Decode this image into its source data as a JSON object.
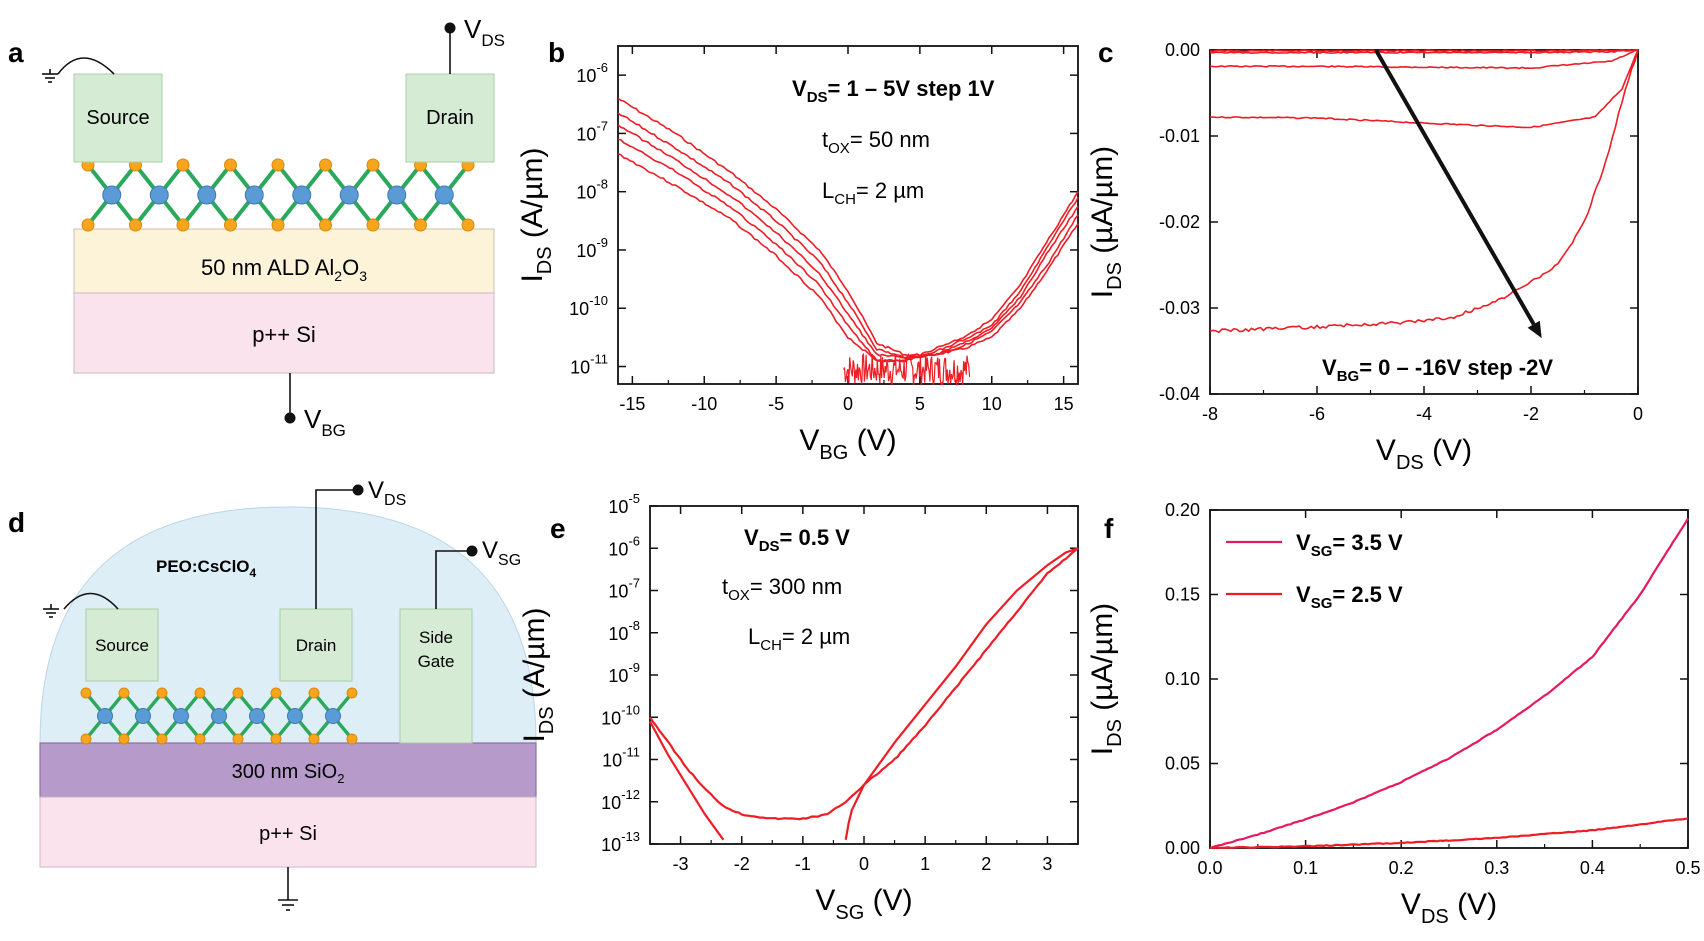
{
  "panels": {
    "a": {
      "letter": "a",
      "source": "Source",
      "drain": "Drain",
      "vds_main": "V",
      "vds_sub": "DS",
      "vbg_main": "V",
      "vbg_sub": "BG",
      "oxide_pre": "50 nm ALD Al",
      "oxide_sub1": "2",
      "oxide_mid": "O",
      "oxide_sub2": "3",
      "substrate": "p++ Si",
      "colors": {
        "contact": "#d5ebd3",
        "oxide": "#fdf3d9",
        "substrate": "#fbe3ee",
        "bond": "#2aa85c",
        "mo": "#5b9bd5",
        "s": "#f7a51c"
      }
    },
    "d": {
      "letter": "d",
      "source": "Source",
      "drain": "Drain",
      "gate_line1": "Side",
      "gate_line2": "Gate",
      "electrolyte_pre": "PEO:CsClO",
      "electrolyte_sub": "4",
      "vds_main": "V",
      "vds_sub": "DS",
      "vsg_main": "V",
      "vsg_sub": "SG",
      "oxide_pre": "300 nm SiO",
      "oxide_sub": "2",
      "substrate": "p++ Si",
      "colors": {
        "dome": "#ddeef7",
        "oxide": "#b69ac9",
        "substrate": "#fbe3ee"
      }
    },
    "b": {
      "letter": "b",
      "ann1_pre": "V",
      "ann1_sub": "DS",
      "ann1_post": "= 1 – 5V step 1V",
      "ann2_pre": "t",
      "ann2_sub": "OX",
      "ann2_post": "= 50 nm",
      "ann3_pre": "L",
      "ann3_sub": "CH",
      "ann3_post": "= 2 µm"
    },
    "c": {
      "letter": "c",
      "ann_pre": "V",
      "ann_sub": "BG",
      "ann_post": "= 0 –  -16V step -2V"
    },
    "e": {
      "letter": "e",
      "ann1_pre": "V",
      "ann1_sub": "DS",
      "ann1_post": "= 0.5 V",
      "ann2_pre": "t",
      "ann2_sub": "OX",
      "ann2_post": "= 300 nm",
      "ann3_pre": "L",
      "ann3_sub": "CH",
      "ann3_post": "= 2 µm"
    },
    "f": {
      "letter": "f"
    }
  },
  "chart_data": [
    {
      "id": "b",
      "type": "line",
      "scale_y": "log",
      "xlabel_main": "V",
      "xlabel_sub": "BG",
      "xlabel_post": " (V)",
      "ylabel_main": "I",
      "ylabel_sub": "DS",
      "ylabel_post": " (A/µm)",
      "xlim": [
        -16,
        16
      ],
      "ylim_exp": [
        -11.3,
        -5.5
      ],
      "xticks": [
        -15,
        -10,
        -5,
        0,
        5,
        10,
        15
      ],
      "yticks_exp": [
        -11,
        -10,
        -9,
        -8,
        -7,
        -6
      ],
      "color": "#ee1c25",
      "series": [
        {
          "x": [
            -16,
            -12,
            -8,
            -5,
            -2,
            0,
            2,
            4,
            6,
            8,
            10,
            12,
            14,
            16
          ],
          "log_y": [
            -7.35,
            -7.9,
            -8.5,
            -9.1,
            -9.8,
            -10.5,
            -10.9,
            -10.9,
            -10.7,
            -10.5,
            -10.2,
            -9.6,
            -8.8,
            -8.0
          ]
        },
        {
          "x": [
            -16,
            -12,
            -8,
            -5,
            -2,
            0,
            2,
            4,
            6,
            8,
            10,
            12,
            14,
            16
          ],
          "log_y": [
            -7.1,
            -7.65,
            -8.3,
            -8.9,
            -9.6,
            -10.3,
            -10.9,
            -10.9,
            -10.75,
            -10.55,
            -10.3,
            -9.7,
            -8.9,
            -8.1
          ]
        },
        {
          "x": [
            -16,
            -12,
            -8,
            -5,
            -2,
            0,
            2,
            4,
            6,
            8,
            10,
            12,
            14,
            16
          ],
          "log_y": [
            -6.85,
            -7.45,
            -8.1,
            -8.7,
            -9.4,
            -10.1,
            -10.8,
            -10.85,
            -10.8,
            -10.6,
            -10.35,
            -9.8,
            -9.0,
            -8.25
          ]
        },
        {
          "x": [
            -16,
            -12,
            -8,
            -5,
            -2,
            0,
            2,
            4,
            6,
            8,
            10,
            12,
            14,
            16
          ],
          "log_y": [
            -6.65,
            -7.25,
            -7.9,
            -8.5,
            -9.2,
            -9.9,
            -10.7,
            -10.85,
            -10.8,
            -10.65,
            -10.4,
            -9.9,
            -9.2,
            -8.4
          ]
        },
        {
          "x": [
            -16,
            -12,
            -8,
            -5,
            -2,
            0,
            2,
            4,
            6,
            8,
            10,
            12,
            14,
            16
          ],
          "log_y": [
            -6.4,
            -7.0,
            -7.7,
            -8.3,
            -9.0,
            -9.7,
            -10.6,
            -10.8,
            -10.8,
            -10.7,
            -10.5,
            -10.0,
            -9.3,
            -8.55
          ]
        }
      ]
    },
    {
      "id": "c",
      "type": "line",
      "xlabel_main": "V",
      "xlabel_sub": "DS",
      "xlabel_post": " (V)",
      "ylabel_main": "I",
      "ylabel_sub": "DS",
      "ylabel_post": " (µA/µm)",
      "xlim": [
        -8,
        0
      ],
      "ylim": [
        -0.04,
        0.0
      ],
      "xticks": [
        -8,
        -6,
        -4,
        -2,
        0
      ],
      "yticks": [
        0.0,
        -0.01,
        -0.02,
        -0.03,
        -0.04
      ],
      "ytick_labels": [
        "0.00",
        "-0.01",
        "-0.02",
        "-0.03",
        "-0.04"
      ],
      "color": "#ee1c25",
      "series": [
        {
          "x": [
            -8,
            -6,
            -4,
            -2,
            -0.5,
            0
          ],
          "y": [
            -0.0001,
            -0.0001,
            -0.0001,
            -0.0001,
            -5e-05,
            0.0
          ]
        },
        {
          "x": [
            -8,
            -6,
            -4,
            -2,
            -0.5,
            0
          ],
          "y": [
            -0.0003,
            -0.0003,
            -0.0003,
            -0.0003,
            -0.0002,
            0.0
          ]
        },
        {
          "x": [
            -8,
            -6,
            -4,
            -2,
            -0.5,
            0
          ],
          "y": [
            -0.0019,
            -0.0019,
            -0.002,
            -0.0021,
            -0.0013,
            0.0
          ]
        },
        {
          "x": [
            -8,
            -6,
            -4,
            -2,
            -0.8,
            -0.3,
            0
          ],
          "y": [
            -0.0078,
            -0.0079,
            -0.0085,
            -0.009,
            -0.0078,
            -0.0045,
            0.0
          ]
        },
        {
          "x": [
            -8,
            -6,
            -4.5,
            -3.5,
            -2.5,
            -1.5,
            -1.0,
            -0.6,
            -0.3,
            0
          ],
          "y": [
            -0.0327,
            -0.0322,
            -0.0317,
            -0.0312,
            -0.0288,
            -0.025,
            -0.02,
            -0.013,
            -0.006,
            0.0
          ]
        }
      ],
      "arrow": {
        "from": [
          -4.9,
          0.0
        ],
        "to": [
          -1.8,
          -0.0335
        ]
      }
    },
    {
      "id": "e",
      "type": "line",
      "scale_y": "log",
      "xlabel_main": "V",
      "xlabel_sub": "SG",
      "xlabel_post": " (V)",
      "ylabel_main": "I",
      "ylabel_sub": "DS",
      "ylabel_post": " (A/µm)",
      "xlim": [
        -3.5,
        3.5
      ],
      "ylim_exp": [
        -13,
        -5
      ],
      "xticks": [
        -3,
        -2,
        -1,
        0,
        1,
        2,
        3
      ],
      "yticks_exp": [
        -13,
        -12,
        -11,
        -10,
        -9,
        -8,
        -7,
        -6,
        -5
      ],
      "color": "#ee1c25",
      "series": [
        {
          "x": [
            -3.5,
            -3.2,
            -2.9,
            -2.6,
            -2.3,
            -2.0,
            -1.5,
            -1.0,
            -0.6,
            -0.3,
            0.0,
            0.5,
            1.0,
            1.5,
            2.0,
            2.5,
            3.0,
            3.5
          ],
          "log_y": [
            -10.0,
            -10.6,
            -11.2,
            -11.7,
            -12.1,
            -12.3,
            -12.4,
            -12.4,
            -12.3,
            -12.0,
            -11.6,
            -11.0,
            -10.2,
            -9.3,
            -8.4,
            -7.5,
            -6.6,
            -6.0
          ]
        },
        {
          "x": [
            -3.5,
            -3.2,
            -2.9,
            -2.6,
            -2.3
          ],
          "log_y": [
            -10.1,
            -10.9,
            -11.6,
            -12.3,
            -12.9
          ]
        },
        {
          "x": [
            -0.3,
            -0.25,
            -0.2,
            -0.1,
            0.0,
            0.5,
            1.0,
            1.5,
            2.0,
            2.5,
            3.0,
            3.3,
            3.5
          ],
          "log_y": [
            -12.9,
            -12.5,
            -12.2,
            -11.9,
            -11.6,
            -10.6,
            -9.7,
            -8.8,
            -7.8,
            -7.0,
            -6.4,
            -6.1,
            -6.0
          ]
        }
      ]
    },
    {
      "id": "f",
      "type": "line",
      "xlabel_main": "V",
      "xlabel_sub": "DS",
      "xlabel_post": " (V)",
      "ylabel_main": "I",
      "ylabel_sub": "DS",
      "ylabel_post": " (µA/µm)",
      "xlim": [
        0.0,
        0.5
      ],
      "ylim": [
        0.0,
        0.2
      ],
      "xticks": [
        0.0,
        0.1,
        0.2,
        0.3,
        0.4,
        0.5
      ],
      "xtick_labels": [
        "0.0",
        "0.1",
        "0.2",
        "0.3",
        "0.4",
        "0.5"
      ],
      "yticks": [
        0.0,
        0.05,
        0.1,
        0.15,
        0.2
      ],
      "ytick_labels": [
        "0.00",
        "0.05",
        "0.10",
        "0.15",
        "0.20"
      ],
      "series": [
        {
          "legend_pre": "V",
          "legend_sub": "SG",
          "legend_post": "= 3.5 V",
          "color": "#e6195f",
          "x": [
            0.0,
            0.05,
            0.1,
            0.15,
            0.2,
            0.25,
            0.3,
            0.35,
            0.4,
            0.45,
            0.5
          ],
          "y": [
            0.0,
            0.008,
            0.017,
            0.027,
            0.039,
            0.053,
            0.07,
            0.09,
            0.113,
            0.15,
            0.195
          ]
        },
        {
          "legend_pre": "V",
          "legend_sub": "SG",
          "legend_post": "= 2.5 V",
          "color": "#ee1c25",
          "x": [
            0.0,
            0.1,
            0.2,
            0.3,
            0.4,
            0.5
          ],
          "y": [
            0.0,
            0.001,
            0.003,
            0.006,
            0.0105,
            0.0175
          ]
        }
      ]
    }
  ]
}
